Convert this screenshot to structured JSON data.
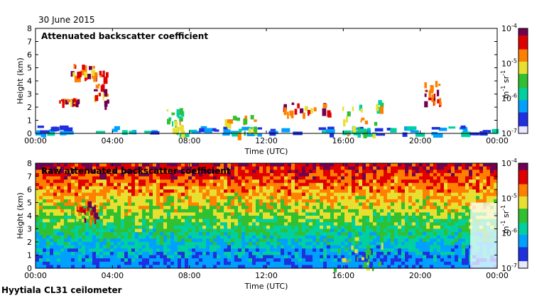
{
  "date": "30 June 2015",
  "footer": "Hyytiala CL31 ceilometer",
  "colors": {
    "colormap": [
      "#e8e8ff",
      "#2030e0",
      "#00a0ff",
      "#00d0a0",
      "#30c030",
      "#e8e030",
      "#ff8000",
      "#e00000",
      "#700050"
    ]
  },
  "chart_data": [
    {
      "type": "heatmap",
      "title": "Attenuated backscatter coefficient",
      "xlabel": "Time (UTC)",
      "ylabel": "Height (km)",
      "x_ticks": [
        "00:00",
        "04:00",
        "08:00",
        "12:00",
        "16:00",
        "20:00",
        "00:00"
      ],
      "y_ticks": [
        "0",
        "1",
        "2",
        "3",
        "4",
        "5",
        "6",
        "7",
        "8"
      ],
      "ylim": [
        0,
        8
      ],
      "xlim_hours": [
        0,
        24
      ],
      "colorbar": {
        "label": "m-1 sr-1",
        "ticks": [
          "10-7",
          "10-6",
          "10-5",
          "10-4"
        ],
        "scale": "log",
        "range": [
          1e-07,
          0.0001
        ]
      },
      "features": [
        {
          "name": "boundary layer",
          "t_start": 0,
          "t_end": 24,
          "h_base": 0,
          "h_top": 0.6,
          "level": "low"
        },
        {
          "name": "cloud",
          "t_start": 1.8,
          "t_end": 3.2,
          "h_base": 4.2,
          "h_top": 5.5,
          "level": "high"
        },
        {
          "name": "cloud",
          "t_start": 1.2,
          "t_end": 2.2,
          "h_base": 2.5,
          "h_top": 2.7,
          "level": "high"
        },
        {
          "name": "cloud",
          "t_start": 3.0,
          "t_end": 3.8,
          "h_base": 2.2,
          "h_top": 4.8,
          "level": "high"
        },
        {
          "name": "cloud",
          "t_start": 6.8,
          "t_end": 7.6,
          "h_base": 0,
          "h_top": 2.0,
          "level": "mid"
        },
        {
          "name": "cloud",
          "t_start": 9.8,
          "t_end": 11.5,
          "h_base": 0,
          "h_top": 1.4,
          "level": "mid"
        },
        {
          "name": "cloud",
          "t_start": 12.8,
          "t_end": 15.3,
          "h_base": 1.5,
          "h_top": 2.4,
          "level": "high"
        },
        {
          "name": "cloud",
          "t_start": 15.5,
          "t_end": 18.0,
          "h_base": 0,
          "h_top": 2.6,
          "level": "mid"
        },
        {
          "name": "cloud",
          "t_start": 20.2,
          "t_end": 21.0,
          "h_base": 2.4,
          "h_top": 4.0,
          "level": "high"
        }
      ]
    },
    {
      "type": "heatmap",
      "title": "Raw attenuated backscatter coefficient",
      "xlabel": "Time (UTC)",
      "ylabel": "Height (km)",
      "x_ticks": [
        "00:00",
        "04:00",
        "08:00",
        "12:00",
        "16:00",
        "20:00",
        "00:00"
      ],
      "y_ticks": [
        "0",
        "1",
        "2",
        "3",
        "4",
        "5",
        "6",
        "7",
        "8"
      ],
      "ylim": [
        0,
        8
      ],
      "xlim_hours": [
        0,
        24
      ],
      "colorbar": {
        "label": "m-1 sr-1",
        "ticks": [
          "10-7",
          "10-6",
          "10-5",
          "10-4"
        ],
        "scale": "log",
        "range": [
          1e-07,
          0.0001
        ]
      },
      "features": [
        {
          "name": "noise gradient",
          "t_start": 0,
          "t_end": 24,
          "h_base": 0,
          "h_top": 8,
          "level": "gradient"
        },
        {
          "name": "cloud",
          "t_start": 1.8,
          "t_end": 3.2,
          "h_base": 3.6,
          "h_top": 5.2,
          "level": "high"
        },
        {
          "name": "cloud",
          "t_start": 15.5,
          "t_end": 18.0,
          "h_base": 0,
          "h_top": 2.4,
          "level": "mid"
        }
      ]
    }
  ]
}
